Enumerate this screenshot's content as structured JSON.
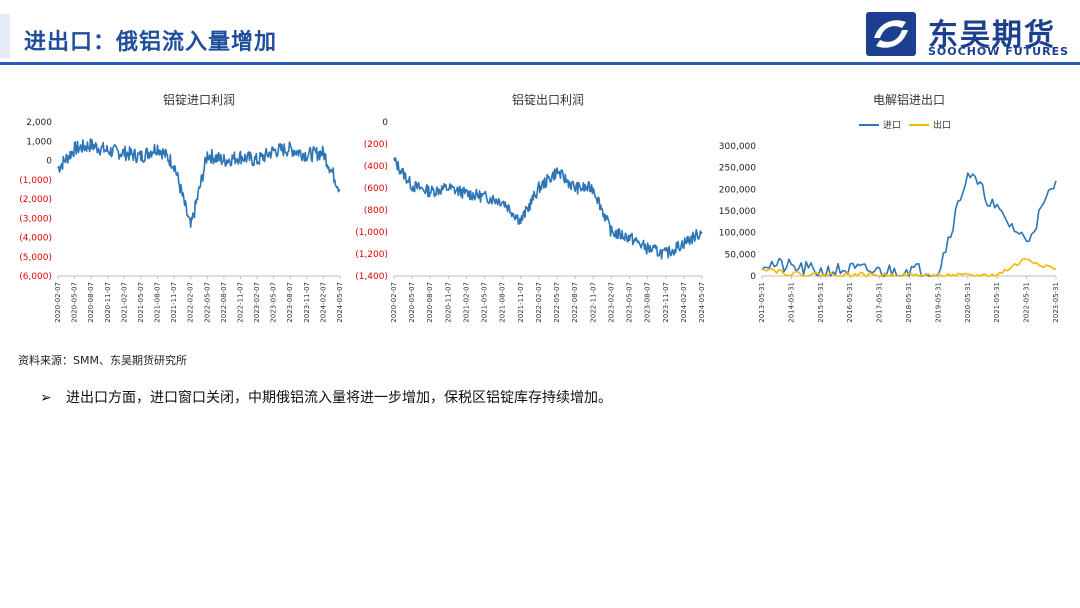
{
  "header": {
    "title": "进出口：俄铝流入量增加",
    "logo_cn": "东吴期货",
    "logo_en": "SOOCHOW FUTURES"
  },
  "colors": {
    "blue": "#2e75b6",
    "yellow": "#f5b800",
    "negative": "#e00000",
    "brand": "#1c3f8f"
  },
  "chart_data": [
    {
      "type": "line",
      "title": "铝锭进口利润",
      "ylim": [
        -6000,
        2000
      ],
      "yticks": [
        "2,000",
        "1,000",
        "0",
        "(1,000)",
        "(2,000)",
        "(3,000)",
        "(4,000)",
        "(5,000)",
        "(6,000)"
      ],
      "x": [
        "2020-02-07",
        "2020-05-07",
        "2020-08-07",
        "2020-11-07",
        "2021-02-07",
        "2021-05-07",
        "2021-08-07",
        "2021-11-07",
        "2022-02-07",
        "2022-05-07",
        "2022-08-07",
        "2022-11-07",
        "2023-02-07",
        "2023-05-07",
        "2023-08-07",
        "2023-11-07",
        "2024-02-07",
        "2024-05-07"
      ],
      "series": [
        {
          "values": [
            -400,
            600,
            800,
            500,
            400,
            200,
            700,
            -200,
            -3500,
            300,
            0,
            200,
            0,
            500,
            600,
            300,
            400,
            -1500
          ]
        }
      ]
    },
    {
      "type": "line",
      "title": "铝锭出口利润",
      "ylim": [
        -1400,
        0
      ],
      "yticks": [
        "0",
        "(200)",
        "(400)",
        "(600)",
        "(800)",
        "(1,000)",
        "(1,200)",
        "(1,400)"
      ],
      "x": [
        "2020-02-07",
        "2020-05-07",
        "2020-08-07",
        "2020-11-07",
        "2021-02-07",
        "2021-05-07",
        "2021-08-07",
        "2021-11-07",
        "2022-02-07",
        "2022-05-07",
        "2022-08-07",
        "2022-11-07",
        "2023-02-07",
        "2023-05-07",
        "2023-08-07",
        "2023-11-07",
        "2024-02-07",
        "2024-05-07"
      ],
      "series": [
        {
          "values": [
            -350,
            -580,
            -630,
            -600,
            -650,
            -680,
            -720,
            -900,
            -600,
            -450,
            -600,
            -600,
            -1000,
            -1050,
            -1150,
            -1200,
            -1100,
            -1000
          ]
        }
      ]
    },
    {
      "type": "line",
      "title": "电解铝进出口",
      "ylim": [
        0,
        300000
      ],
      "yticks": [
        "300,000",
        "250,000",
        "200,000",
        "150,000",
        "100,000",
        "50,000",
        "0"
      ],
      "x": [
        "2013-05-31",
        "2014-05-31",
        "2015-05-31",
        "2016-05-31",
        "2017-05-31",
        "2018-05-31",
        "2019-05-31",
        "2020-05-31",
        "2021-05-31",
        "2022-05-31",
        "2023-05-31"
      ],
      "series": [
        {
          "name": "进口",
          "values": [
            30000,
            20000,
            10000,
            15000,
            10000,
            15000,
            10000,
            240000,
            150000,
            80000,
            220000
          ]
        },
        {
          "name": "出口",
          "values": [
            20000,
            5000,
            3000,
            2000,
            2000,
            1000,
            1000,
            0,
            2000,
            40000,
            15000
          ]
        }
      ]
    }
  ],
  "source": "资料来源：SMM、东吴期货研究所",
  "bullet": {
    "mark": "➢",
    "text": "进出口方面，进口窗口关闭，中期俄铝流入量将进一步增加，保税区铝锭库存持续增加。"
  }
}
